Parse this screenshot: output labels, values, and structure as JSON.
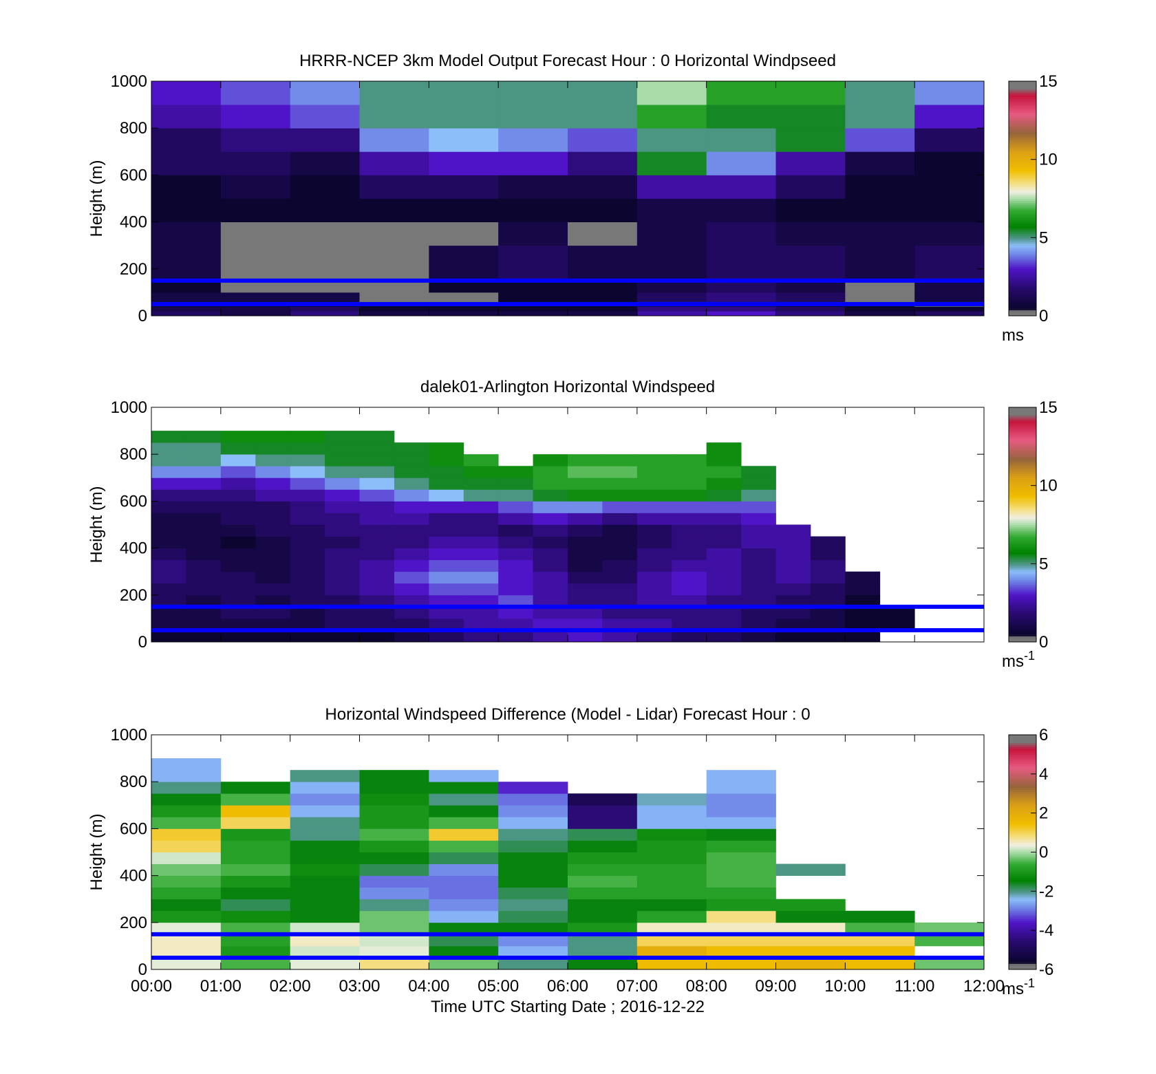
{
  "chart_data": [
    {
      "type": "heatmap",
      "title": "HRRR-NCEP 3km Model Output   Forecast Hour : 0 Horizontal Windpseed",
      "xlabel": "",
      "ylabel": "Height (m)",
      "xlim": [
        0,
        12
      ],
      "ylim": [
        0,
        1000
      ],
      "y_ticks": [
        0,
        200,
        400,
        600,
        800,
        1000
      ],
      "x_ticks": [
        0,
        1,
        2,
        3,
        4,
        5,
        6,
        7,
        8,
        9,
        10,
        11,
        12
      ],
      "x_tick_labels": [],
      "colorbar": {
        "min": 0,
        "max": 15,
        "ticks": [
          0,
          5,
          10,
          15
        ],
        "unit": "ms",
        "unit_sup": ""
      },
      "reference_heights_m": [
        50,
        150
      ],
      "time_hours": [
        0,
        1,
        2,
        3,
        4,
        5,
        6,
        7,
        8,
        9,
        10,
        11
      ],
      "levels_m": [
        0,
        20,
        40,
        60,
        100,
        150,
        200,
        300,
        400,
        500,
        600,
        700,
        800,
        900
      ],
      "values": [
        [
          1.5,
          1.0,
          2.0,
          1.0,
          1.0,
          1.0,
          1.0,
          2.5,
          3.0,
          2.0,
          1.0,
          1.5
        ],
        [
          1.0,
          1.0,
          1.5,
          0.5,
          0.5,
          0.5,
          0.5,
          2.0,
          2.0,
          1.5,
          0.5,
          0.5
        ],
        [
          0.5,
          0.5,
          0.5,
          0.5,
          0.5,
          0.5,
          0.5,
          1.0,
          1.0,
          0.5,
          0.5,
          0.0
        ],
        [
          1.0,
          1.0,
          1.0,
          0.0,
          0.0,
          0.5,
          0.5,
          1.5,
          2.0,
          1.5,
          0.0,
          1.0
        ],
        [
          0.5,
          0.0,
          0.0,
          0.0,
          0.5,
          0.5,
          0.5,
          1.0,
          1.5,
          1.0,
          0.0,
          1.0
        ],
        [
          1.0,
          0.0,
          0.0,
          0.0,
          1.0,
          1.5,
          1.0,
          1.0,
          1.5,
          1.5,
          1.0,
          1.5
        ],
        [
          1.0,
          0.0,
          0.0,
          0.0,
          1.0,
          1.5,
          1.0,
          1.0,
          1.5,
          1.5,
          1.0,
          1.5
        ],
        [
          1.0,
          0.0,
          0.0,
          0.0,
          0.0,
          1.0,
          0.0,
          1.0,
          1.5,
          1.0,
          1.0,
          1.0
        ],
        [
          0.5,
          0.5,
          0.5,
          0.5,
          0.5,
          0.5,
          0.5,
          1.0,
          1.0,
          0.5,
          0.5,
          0.5
        ],
        [
          0.5,
          1.0,
          0.5,
          1.5,
          1.5,
          1.0,
          1.0,
          2.5,
          2.5,
          1.5,
          0.5,
          0.5
        ],
        [
          1.5,
          1.5,
          1.0,
          2.5,
          3.0,
          3.0,
          2.0,
          5.5,
          4.0,
          2.5,
          1.0,
          0.5
        ],
        [
          1.5,
          2.0,
          2.0,
          4.0,
          4.5,
          4.0,
          3.5,
          5.0,
          5.0,
          5.5,
          3.5,
          1.5
        ],
        [
          2.5,
          3.0,
          3.5,
          5.0,
          5.0,
          5.0,
          5.0,
          6.5,
          5.5,
          5.5,
          5.0,
          3.0
        ],
        [
          3.0,
          3.5,
          4.0,
          5.0,
          5.0,
          5.0,
          5.0,
          7.5,
          6.5,
          6.5,
          5.0,
          4.0
        ]
      ]
    },
    {
      "type": "heatmap",
      "title": "dalek01-Arlington  Horizontal Windspeed",
      "xlabel": "",
      "ylabel": "Height (m)",
      "xlim": [
        0,
        12
      ],
      "ylim": [
        0,
        1000
      ],
      "y_ticks": [
        0,
        200,
        400,
        600,
        800,
        1000
      ],
      "x_ticks": [
        0,
        1,
        2,
        3,
        4,
        5,
        6,
        7,
        8,
        9,
        10,
        11,
        12
      ],
      "x_tick_labels": [],
      "colorbar": {
        "min": 0,
        "max": 15,
        "ticks": [
          0,
          5,
          10,
          15
        ],
        "unit": "ms",
        "unit_sup": "-1"
      },
      "reference_heights_m": [
        50,
        150
      ],
      "time_hours": [
        0,
        0.5,
        1,
        1.5,
        2,
        2.5,
        3,
        3.5,
        4,
        4.5,
        5,
        5.5,
        6,
        6.5,
        7,
        7.5,
        8,
        8.5,
        9,
        9.5,
        10,
        10.5
      ],
      "levels_m": [
        0,
        50,
        100,
        150,
        200,
        250,
        300,
        350,
        400,
        450,
        500,
        550,
        600,
        650,
        700,
        750,
        800,
        850
      ],
      "values": [
        [
          0.5,
          0.5,
          0.5,
          0.5,
          0.5,
          0.5,
          0.5,
          1.0,
          1.5,
          2.0,
          2.0,
          2.5,
          3.0,
          2.5,
          2.0,
          1.5,
          1.5,
          1.0,
          0.5,
          0.5,
          0.5,
          null
        ],
        [
          1.0,
          1.0,
          1.0,
          1.0,
          1.0,
          1.5,
          1.5,
          1.5,
          2.0,
          2.5,
          2.5,
          3.0,
          3.0,
          2.5,
          2.5,
          2.0,
          2.0,
          1.5,
          1.0,
          1.0,
          0.5,
          0.5
        ],
        [
          1.0,
          1.0,
          1.5,
          1.5,
          1.0,
          1.5,
          1.5,
          2.0,
          2.5,
          2.5,
          3.0,
          2.5,
          2.5,
          2.0,
          2.0,
          2.0,
          2.0,
          1.5,
          1.5,
          1.0,
          0.5,
          0.5
        ],
        [
          1.5,
          1.0,
          1.5,
          1.0,
          1.5,
          1.5,
          2.0,
          2.5,
          3.0,
          3.0,
          3.5,
          2.5,
          2.0,
          2.0,
          2.5,
          2.5,
          2.0,
          2.0,
          1.5,
          1.5,
          0.5,
          null
        ],
        [
          1.5,
          1.5,
          1.5,
          1.5,
          1.5,
          2.0,
          2.5,
          3.0,
          3.5,
          3.5,
          3.0,
          2.5,
          2.0,
          2.0,
          2.5,
          3.0,
          2.5,
          2.0,
          2.0,
          1.5,
          1.0,
          null
        ],
        [
          2.0,
          1.5,
          1.5,
          1.0,
          1.5,
          2.0,
          2.5,
          3.5,
          4.0,
          4.0,
          3.0,
          2.5,
          1.5,
          1.5,
          2.5,
          3.0,
          2.5,
          2.0,
          2.5,
          2.0,
          1.0,
          null
        ],
        [
          2.0,
          1.5,
          1.0,
          1.0,
          1.5,
          2.0,
          2.5,
          3.0,
          3.5,
          3.5,
          3.0,
          2.0,
          1.0,
          1.5,
          2.0,
          2.5,
          2.5,
          2.0,
          2.5,
          2.0,
          null,
          null
        ],
        [
          1.5,
          1.0,
          1.0,
          1.0,
          1.5,
          2.0,
          2.0,
          2.5,
          3.0,
          3.0,
          2.5,
          2.0,
          1.0,
          1.0,
          2.0,
          2.0,
          2.5,
          2.0,
          2.5,
          1.5,
          null,
          null
        ],
        [
          1.0,
          1.0,
          0.5,
          1.0,
          1.5,
          1.5,
          2.0,
          2.0,
          2.5,
          2.5,
          2.0,
          1.5,
          1.0,
          1.0,
          1.5,
          2.0,
          2.0,
          2.5,
          2.5,
          1.5,
          null,
          null
        ],
        [
          1.0,
          1.0,
          1.0,
          1.5,
          1.5,
          2.0,
          2.0,
          2.0,
          2.0,
          2.0,
          1.5,
          2.0,
          1.5,
          1.0,
          1.5,
          2.0,
          2.0,
          2.5,
          2.5,
          null,
          null,
          null
        ],
        [
          1.0,
          1.0,
          1.5,
          1.5,
          2.0,
          2.0,
          2.5,
          2.5,
          2.0,
          2.0,
          2.5,
          3.0,
          2.5,
          2.0,
          2.5,
          2.5,
          2.5,
          3.0,
          null,
          null,
          null,
          null
        ],
        [
          1.5,
          1.5,
          1.5,
          1.5,
          2.0,
          2.5,
          2.5,
          3.0,
          3.0,
          3.0,
          3.5,
          4.0,
          4.0,
          3.5,
          3.5,
          3.5,
          3.5,
          3.5,
          null,
          null,
          null,
          null
        ],
        [
          2.0,
          2.0,
          2.0,
          2.5,
          2.5,
          3.0,
          3.5,
          4.0,
          4.5,
          5.0,
          5.0,
          5.5,
          6.0,
          6.0,
          6.0,
          6.0,
          5.5,
          5.0,
          null,
          null,
          null,
          null
        ],
        [
          3.0,
          3.0,
          2.5,
          3.0,
          3.5,
          4.0,
          4.5,
          5.0,
          5.5,
          5.5,
          5.5,
          6.5,
          6.5,
          6.5,
          6.5,
          6.5,
          6.0,
          5.5,
          null,
          null,
          null,
          null
        ],
        [
          4.0,
          4.0,
          3.5,
          4.0,
          4.5,
          5.0,
          5.0,
          5.5,
          5.5,
          6.0,
          6.0,
          6.5,
          7.0,
          7.0,
          6.5,
          6.5,
          6.5,
          5.5,
          null,
          null,
          null,
          null
        ],
        [
          5.0,
          5.0,
          4.5,
          5.0,
          5.0,
          5.5,
          5.5,
          5.5,
          6.0,
          6.5,
          null,
          6.0,
          6.5,
          6.5,
          6.5,
          6.5,
          6.0,
          null,
          null,
          null,
          null,
          null
        ],
        [
          5.0,
          5.0,
          5.5,
          5.5,
          5.5,
          5.5,
          5.5,
          5.5,
          6.0,
          null,
          null,
          null,
          null,
          null,
          null,
          null,
          6.0,
          null,
          null,
          null,
          null,
          null
        ],
        [
          5.5,
          5.5,
          6.0,
          6.0,
          6.0,
          5.5,
          5.5,
          null,
          null,
          null,
          null,
          null,
          null,
          null,
          null,
          null,
          null,
          null,
          null,
          null,
          null,
          null
        ]
      ]
    },
    {
      "type": "heatmap",
      "title": "Horizontal Windspeed Difference (Model - Lidar) Forecast Hour : 0",
      "xlabel": "Time UTC  Starting Date ; 2016-12-22",
      "ylabel": "Height (m)",
      "xlim": [
        0,
        12
      ],
      "ylim": [
        0,
        1000
      ],
      "y_ticks": [
        0,
        200,
        400,
        600,
        800,
        1000
      ],
      "x_ticks": [
        0,
        1,
        2,
        3,
        4,
        5,
        6,
        7,
        8,
        9,
        10,
        11,
        12
      ],
      "x_tick_labels": [
        "00:00",
        "01:00",
        "02:00",
        "03:00",
        "04:00",
        "05:00",
        "06:00",
        "07:00",
        "08:00",
        "09:00",
        "10:00",
        "11:00",
        "12:00"
      ],
      "colorbar": {
        "min": -6,
        "max": 6,
        "ticks": [
          -6,
          -4,
          -2,
          0,
          2,
          4,
          6
        ],
        "unit": "ms",
        "unit_sup": "-1"
      },
      "reference_heights_m": [
        50,
        150
      ],
      "time_hours": [
        0,
        1,
        2,
        3,
        4,
        5,
        6,
        7,
        8,
        9,
        10,
        11
      ],
      "levels_m": [
        0,
        50,
        100,
        150,
        200,
        250,
        300,
        350,
        400,
        450,
        500,
        550,
        600,
        650,
        700,
        750,
        800,
        850
      ],
      "values": [
        [
          0.3,
          -0.5,
          0.3,
          0.8,
          -0.3,
          -2.0,
          -1.5,
          1.5,
          1.5,
          1.8,
          1.5,
          -0.3
        ],
        [
          0.5,
          -1.0,
          0.2,
          0.3,
          -1.5,
          -2.5,
          -2.0,
          2.0,
          1.5,
          1.5,
          1.5,
          null
        ],
        [
          0.5,
          -0.8,
          0.5,
          0.2,
          -1.8,
          -2.8,
          -2.0,
          1.0,
          1.0,
          1.0,
          1.0,
          -0.5
        ],
        [
          0.3,
          -0.5,
          0.2,
          -0.3,
          -1.5,
          -1.5,
          -1.0,
          0.5,
          0.5,
          0.5,
          -0.5,
          -0.3
        ],
        [
          -1.0,
          -1.2,
          -1.5,
          -0.3,
          -2.5,
          -1.8,
          -1.5,
          -0.8,
          0.8,
          -1.5,
          -1.5,
          null
        ],
        [
          -1.5,
          -1.8,
          -1.5,
          -2.0,
          -2.8,
          -2.0,
          -1.5,
          -1.5,
          -1.0,
          -1.0,
          null,
          null
        ],
        [
          -0.8,
          -1.5,
          -1.5,
          -2.8,
          -3.0,
          -1.8,
          -0.8,
          -0.8,
          -0.8,
          null,
          null,
          null
        ],
        [
          -0.5,
          -1.0,
          -1.5,
          -3.0,
          -3.0,
          -1.5,
          -0.5,
          -0.8,
          -0.5,
          null,
          null,
          null
        ],
        [
          -0.3,
          -0.5,
          -1.2,
          -1.8,
          -2.8,
          -1.5,
          -0.8,
          -0.8,
          -0.5,
          -2.0,
          null,
          null
        ],
        [
          0.2,
          -0.8,
          -1.5,
          -1.5,
          -1.8,
          -1.5,
          -1.0,
          -1.0,
          -0.5,
          null,
          null,
          null
        ],
        [
          1.0,
          -0.8,
          -1.5,
          -1.0,
          -0.5,
          -1.8,
          -1.5,
          -1.0,
          -0.8,
          null,
          null,
          null
        ],
        [
          1.2,
          -1.0,
          -2.0,
          -0.5,
          1.2,
          -2.0,
          -1.8,
          -1.2,
          -1.5,
          null,
          null,
          null
        ],
        [
          -0.5,
          1.0,
          -2.0,
          -1.0,
          -0.5,
          -2.5,
          -4.5,
          -2.5,
          -2.5,
          null,
          null,
          null
        ],
        [
          -1.0,
          1.5,
          -2.5,
          -1.0,
          -1.5,
          -2.8,
          -4.5,
          -2.5,
          -2.8,
          null,
          null,
          null
        ],
        [
          -1.5,
          -0.5,
          -2.8,
          -1.2,
          -2.0,
          -3.0,
          -5.0,
          -2.2,
          -2.8,
          null,
          null,
          null
        ],
        [
          -2.0,
          -1.5,
          -2.5,
          -1.5,
          -1.5,
          -3.5,
          null,
          null,
          -2.5,
          null,
          null,
          null
        ],
        [
          -2.5,
          null,
          -2.0,
          -1.5,
          -2.5,
          null,
          null,
          null,
          -2.5,
          null,
          null,
          null
        ],
        [
          -2.5,
          null,
          null,
          null,
          null,
          null,
          null,
          null,
          null,
          null,
          null,
          null
        ]
      ]
    }
  ]
}
